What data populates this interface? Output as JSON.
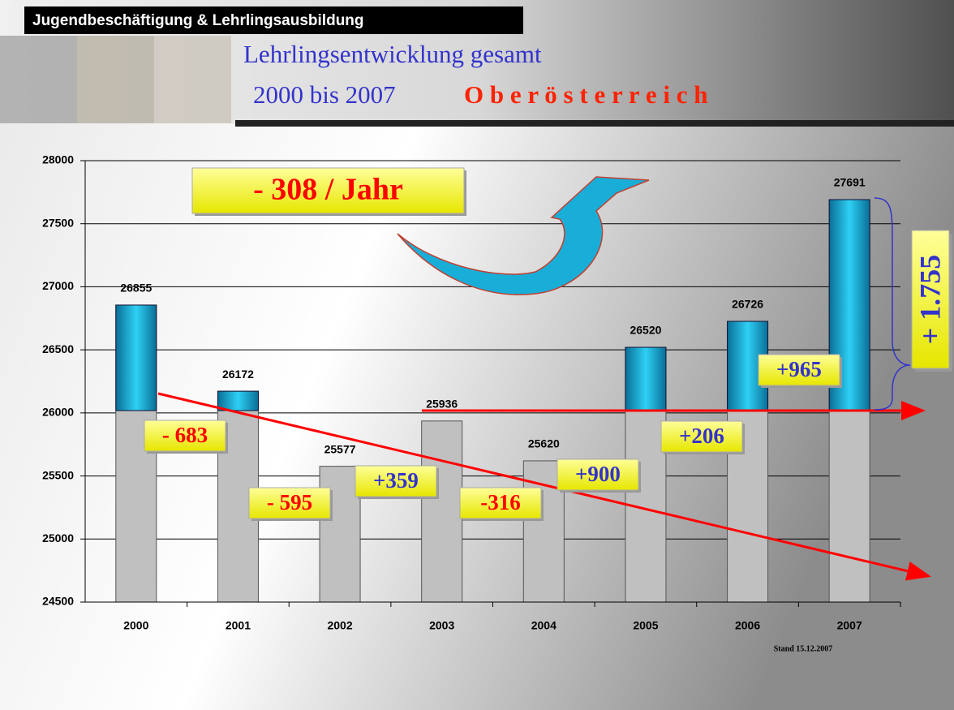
{
  "header": {
    "label": "Jugendbeschäftigung & Lehrlingsausbildung",
    "title": "Lehrlingsentwicklung gesamt",
    "subtitle": "2000 bis 2007",
    "region": "O b e r ö s t e r r e i c h"
  },
  "chart_data": {
    "type": "bar",
    "categories": [
      "2000",
      "2001",
      "2002",
      "2003",
      "2004",
      "2005",
      "2006",
      "2007"
    ],
    "values": [
      26855,
      26172,
      25577,
      25936,
      25620,
      26520,
      26726,
      27691
    ],
    "color": "#c0c0c0",
    "highlight_color": "#1cb4dc",
    "ylim": [
      24500,
      28000
    ],
    "yticks": [
      24500,
      25000,
      25500,
      26000,
      26500,
      27000,
      27500,
      28000
    ],
    "grid": true,
    "annotations": [
      {
        "text": "- 683",
        "color": "#ff0000"
      },
      {
        "text": "- 595",
        "color": "#ff0000"
      },
      {
        "text": "+359",
        "color": "#3333cc"
      },
      {
        "text": "-316",
        "color": "#ff0000"
      },
      {
        "text": "+900",
        "color": "#3333cc"
      },
      {
        "text": "+206",
        "color": "#3333cc"
      },
      {
        "text": "+965",
        "color": "#3333cc"
      }
    ],
    "trend_label": "- 308 / Jahr",
    "growth_label": "+ 1.755",
    "note": "Stand 15.12.2007"
  }
}
